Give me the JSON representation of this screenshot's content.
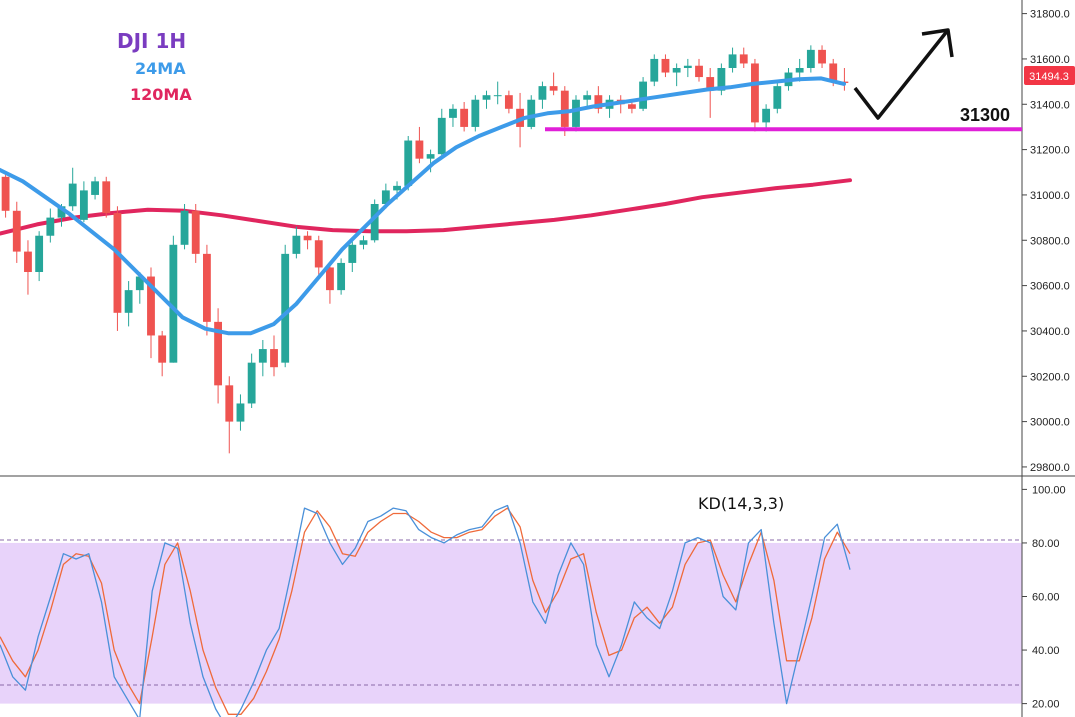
{
  "colors": {
    "up": "#26a69a",
    "down": "#ef5350",
    "ma24": "#3d9be9",
    "ma120": "#e0265e",
    "support": "#e020d8",
    "k_line": "#4a90d9",
    "d_line": "#ef6a3a",
    "osc_band": "#e8d3fa",
    "price_tag": "#f23645",
    "title": "#7a3cc0"
  },
  "legend": {
    "title": "DJI 1H",
    "ma_short": "24MA",
    "ma_long": "120MA"
  },
  "price_label": "31494.3",
  "support_label": "31300",
  "oscillator_label": "KD(14,3,3)",
  "chart_data": [
    {
      "type": "candlestick",
      "title": "DJI 1H",
      "ylim": [
        29760,
        31860
      ],
      "y_ticks": [
        "31800.0",
        "31600.0",
        "31400.0",
        "31200.0",
        "31000.0",
        "30800.0",
        "30600.0",
        "30400.0",
        "30200.0",
        "30000.0",
        "29800.0"
      ],
      "y_tick_values": [
        31800,
        31600,
        31400,
        31200,
        31000,
        30800,
        30600,
        30400,
        30200,
        30000,
        29800
      ],
      "candles": [
        [
          31080,
          31100,
          30900,
          30930
        ],
        [
          30930,
          30970,
          30700,
          30750
        ],
        [
          30750,
          30800,
          30560,
          30660
        ],
        [
          30660,
          30840,
          30620,
          30820
        ],
        [
          30820,
          30940,
          30790,
          30900
        ],
        [
          30900,
          30960,
          30860,
          30950
        ],
        [
          30950,
          31120,
          30930,
          31050
        ],
        [
          30890,
          31060,
          30880,
          31020
        ],
        [
          31000,
          31080,
          30980,
          31060
        ],
        [
          31060,
          31080,
          30900,
          30920
        ],
        [
          30920,
          30950,
          30400,
          30480
        ],
        [
          30480,
          30620,
          30420,
          30580
        ],
        [
          30580,
          30660,
          30520,
          30640
        ],
        [
          30640,
          30680,
          30280,
          30380
        ],
        [
          30380,
          30400,
          30200,
          30260
        ],
        [
          30260,
          30820,
          30260,
          30780
        ],
        [
          30780,
          30960,
          30760,
          30930
        ],
        [
          30930,
          30960,
          30700,
          30740
        ],
        [
          30740,
          30780,
          30380,
          30440
        ],
        [
          30440,
          30500,
          30080,
          30160
        ],
        [
          30160,
          30200,
          29860,
          30000
        ],
        [
          30000,
          30120,
          29960,
          30080
        ],
        [
          30080,
          30300,
          30060,
          30260
        ],
        [
          30260,
          30360,
          30200,
          30320
        ],
        [
          30320,
          30380,
          30200,
          30240
        ],
        [
          30260,
          30780,
          30240,
          30740
        ],
        [
          30740,
          30860,
          30720,
          30820
        ],
        [
          30820,
          30840,
          30760,
          30800
        ],
        [
          30800,
          30820,
          30640,
          30680
        ],
        [
          30680,
          30700,
          30520,
          30580
        ],
        [
          30580,
          30720,
          30560,
          30700
        ],
        [
          30700,
          30800,
          30660,
          30780
        ],
        [
          30780,
          30820,
          30760,
          30800
        ],
        [
          30800,
          30980,
          30790,
          30960
        ],
        [
          30960,
          31050,
          30940,
          31020
        ],
        [
          31020,
          31060,
          30980,
          31040
        ],
        [
          31040,
          31260,
          31020,
          31240
        ],
        [
          31240,
          31300,
          31140,
          31160
        ],
        [
          31160,
          31200,
          31100,
          31180
        ],
        [
          31180,
          31380,
          31160,
          31340
        ],
        [
          31340,
          31400,
          31300,
          31380
        ],
        [
          31380,
          31410,
          31280,
          31300
        ],
        [
          31300,
          31440,
          31280,
          31420
        ],
        [
          31420,
          31460,
          31380,
          31440
        ],
        [
          31440,
          31500,
          31400,
          31440
        ],
        [
          31440,
          31460,
          31360,
          31380
        ],
        [
          31380,
          31450,
          31210,
          31300
        ],
        [
          31300,
          31440,
          31290,
          31420
        ],
        [
          31420,
          31500,
          31380,
          31480
        ],
        [
          31480,
          31540,
          31440,
          31460
        ],
        [
          31460,
          31480,
          31260,
          31300
        ],
        [
          31300,
          31440,
          31280,
          31420
        ],
        [
          31420,
          31460,
          31380,
          31440
        ],
        [
          31440,
          31480,
          31360,
          31380
        ],
        [
          31380,
          31440,
          31340,
          31420
        ],
        [
          31420,
          31440,
          31360,
          31400
        ],
        [
          31400,
          31420,
          31360,
          31380
        ],
        [
          31380,
          31520,
          31370,
          31500
        ],
        [
          31500,
          31620,
          31480,
          31600
        ],
        [
          31600,
          31620,
          31520,
          31540
        ],
        [
          31540,
          31580,
          31480,
          31560
        ],
        [
          31560,
          31600,
          31520,
          31570
        ],
        [
          31570,
          31600,
          31500,
          31520
        ],
        [
          31520,
          31560,
          31340,
          31460
        ],
        [
          31460,
          31580,
          31440,
          31560
        ],
        [
          31560,
          31650,
          31540,
          31620
        ],
        [
          31620,
          31650,
          31560,
          31580
        ],
        [
          31580,
          31600,
          31280,
          31320
        ],
        [
          31320,
          31400,
          31280,
          31380
        ],
        [
          31380,
          31500,
          31360,
          31480
        ],
        [
          31480,
          31560,
          31460,
          31540
        ],
        [
          31540,
          31600,
          31500,
          31560
        ],
        [
          31560,
          31660,
          31540,
          31640
        ],
        [
          31640,
          31660,
          31560,
          31580
        ],
        [
          31580,
          31600,
          31480,
          31500
        ],
        [
          31500,
          31560,
          31460,
          31494
        ]
      ],
      "ma24": [
        31110,
        31060,
        30990,
        30920,
        30840,
        30760,
        30660,
        30560,
        30460,
        30410,
        30390,
        30390,
        30430,
        30520,
        30640,
        30760,
        30860,
        30960,
        31050,
        31140,
        31210,
        31260,
        31300,
        31340,
        31360,
        31370,
        31390,
        31405,
        31420,
        31435,
        31450,
        31465,
        31475,
        31490,
        31500,
        31510,
        31514,
        31490
      ],
      "ma120": [
        30830,
        30870,
        30900,
        30920,
        30935,
        30930,
        30910,
        30885,
        30860,
        30845,
        30840,
        30840,
        30845,
        30860,
        30875,
        30890,
        30910,
        30935,
        30960,
        30990,
        31010,
        31030,
        31045,
        31065
      ],
      "support": 31290
    },
    {
      "type": "line",
      "title": "KD(14,3,3)",
      "ylim": [
        15,
        105
      ],
      "y_ticks": [
        "100.00",
        "80.00",
        "60.00",
        "40.00",
        "20.00"
      ],
      "y_tick_values": [
        100,
        80,
        60,
        40,
        20
      ],
      "band": [
        20,
        80
      ],
      "k": [
        42,
        30,
        25,
        45,
        60,
        76,
        74,
        76,
        58,
        30,
        22,
        14,
        62,
        80,
        78,
        50,
        30,
        18,
        10,
        18,
        28,
        40,
        48,
        70,
        93,
        91,
        80,
        72,
        78,
        88,
        90,
        93,
        92,
        85,
        82,
        80,
        83,
        85,
        86,
        92,
        94,
        80,
        58,
        50,
        68,
        80,
        72,
        42,
        30,
        42,
        58,
        52,
        48,
        62,
        80,
        82,
        80,
        60,
        55,
        80,
        85,
        50,
        20,
        40,
        60,
        82,
        87,
        70
      ],
      "d": [
        45,
        36,
        30,
        40,
        55,
        72,
        76,
        75,
        65,
        40,
        28,
        20,
        45,
        72,
        80,
        62,
        40,
        26,
        16,
        16,
        22,
        32,
        44,
        62,
        84,
        92,
        86,
        76,
        75,
        84,
        88,
        91,
        91,
        88,
        84,
        82,
        82,
        84,
        85,
        90,
        93,
        86,
        66,
        54,
        62,
        74,
        76,
        54,
        38,
        40,
        52,
        56,
        50,
        56,
        72,
        80,
        81,
        68,
        58,
        72,
        84,
        66,
        36,
        36,
        52,
        74,
        84,
        76
      ]
    }
  ]
}
